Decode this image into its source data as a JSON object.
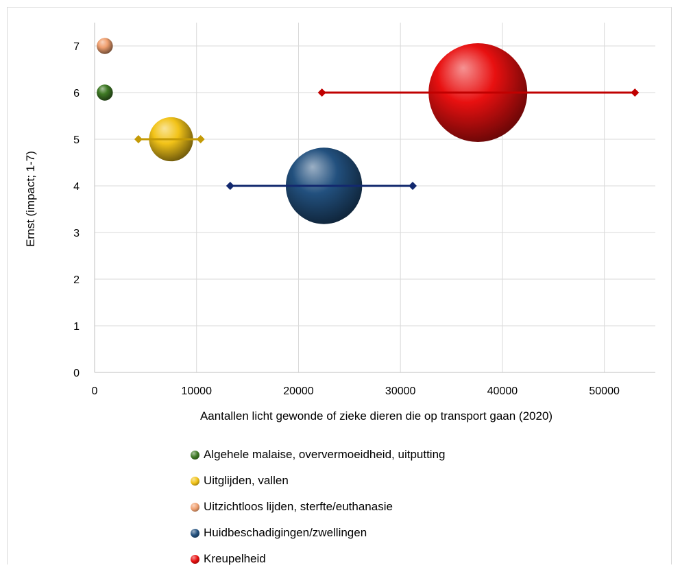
{
  "chart_data": {
    "type": "bubble",
    "xlabel": "Aantallen licht gewonde of zieke dieren die op transport gaan (2020)",
    "ylabel": "Ernst (impact; 1-7)",
    "xlim": [
      0,
      55000
    ],
    "ylim": [
      0,
      7.5
    ],
    "x_ticks": [
      0,
      10000,
      20000,
      30000,
      40000,
      50000
    ],
    "y_ticks": [
      0,
      1,
      2,
      3,
      4,
      5,
      6,
      7
    ],
    "grid": true,
    "legend_position": "bottom",
    "series": [
      {
        "name": "Algehele malaise, oververmoeidheid, uitputting",
        "x": 1000,
        "y": 6,
        "size": 1000,
        "range": null,
        "color": "#3f7a25"
      },
      {
        "name": "Uitglijden, vallen",
        "x": 7500,
        "y": 5,
        "size": 7500,
        "range": [
          4300,
          10400
        ],
        "color": "#f2c318",
        "range_color": "#c49a06"
      },
      {
        "name": "Uitzichtloos lijden, sterfte/euthanasie",
        "x": 1000,
        "y": 7,
        "size": 1000,
        "range": null,
        "color": "#f0a070"
      },
      {
        "name": "Huidbeschadigingen/zwellingen",
        "x": 22500,
        "y": 4,
        "size": 22500,
        "range": [
          13300,
          31200
        ],
        "color": "#22507e",
        "range_color": "#12286e"
      },
      {
        "name": "Kreupelheid",
        "x": 37600,
        "y": 6,
        "size": 37600,
        "range": [
          22300,
          53000
        ],
        "color": "#e81010",
        "range_color": "#c00000"
      }
    ]
  }
}
